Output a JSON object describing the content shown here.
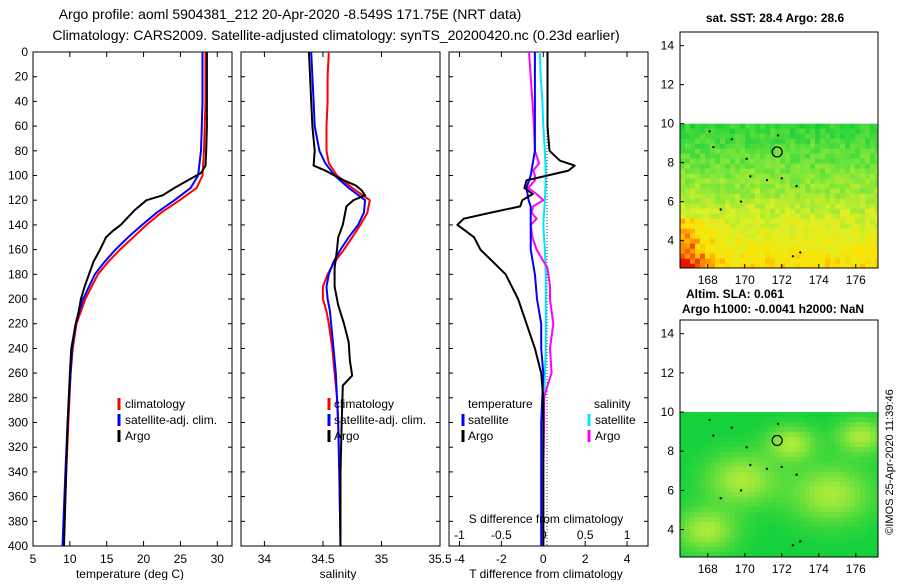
{
  "header": {
    "title_line1": "Argo profile: aoml 5904381_212 20-Apr-2020 -8.549S 171.75E (NRT data)",
    "title_line2": "Climatology: CARS2009. Satellite-adjusted climatology: synTS_20200420.nc (0.23d earlier)"
  },
  "colors": {
    "climatology": "#ff0000",
    "satellite": "#0000ff",
    "argo": "#000000",
    "satellite_salinity": "#00e5ff",
    "argo_salinity": "#ff00ff"
  },
  "depth_ticks": [
    "0",
    "20",
    "40",
    "60",
    "80",
    "100",
    "120",
    "140",
    "160",
    "180",
    "200",
    "220",
    "240",
    "260",
    "280",
    "300",
    "320",
    "340",
    "360",
    "380",
    "400"
  ],
  "chart_data": [
    {
      "type": "line",
      "panel": "temperature",
      "xlabel": "temperature (deg C)",
      "ylabel": "depth",
      "xlim": [
        5,
        32
      ],
      "ylim": [
        400,
        0
      ],
      "x_ticks": [
        "5",
        "10",
        "15",
        "20",
        "25",
        "30"
      ],
      "legend": [
        "climatology",
        "satellite-adj. clim.",
        "Argo"
      ],
      "series": [
        {
          "name": "climatology",
          "color": "#ff0000",
          "depth": [
            0,
            20,
            40,
            60,
            80,
            100,
            110,
            120,
            130,
            140,
            150,
            160,
            170,
            180,
            200,
            220,
            240,
            260,
            300,
            340,
            400
          ],
          "values": [
            28.4,
            28.4,
            28.4,
            28.3,
            28.2,
            28.0,
            27.2,
            24.9,
            22.4,
            20.4,
            18.6,
            16.8,
            15.2,
            13.8,
            12.1,
            10.9,
            10.4,
            10.1,
            9.8,
            9.5,
            9.1
          ]
        },
        {
          "name": "satellite-adj. clim.",
          "color": "#0000ff",
          "depth": [
            0,
            20,
            40,
            60,
            80,
            100,
            110,
            120,
            130,
            140,
            150,
            160,
            170,
            180,
            200,
            220,
            240,
            260,
            300,
            340,
            400
          ],
          "values": [
            28.0,
            28.0,
            28.0,
            27.9,
            27.8,
            27.4,
            26.4,
            24.2,
            21.8,
            19.8,
            17.9,
            16.2,
            14.7,
            13.4,
            11.8,
            10.8,
            10.3,
            10.1,
            9.7,
            9.4,
            9.0
          ]
        },
        {
          "name": "Argo",
          "color": "#000000",
          "depth": [
            0,
            20,
            40,
            60,
            80,
            92,
            98,
            104,
            110,
            116,
            120,
            128,
            135,
            140,
            145,
            150,
            160,
            170,
            180,
            190,
            200,
            210,
            220,
            230,
            240,
            260,
            300,
            340,
            400
          ],
          "values": [
            28.6,
            28.6,
            28.6,
            28.6,
            28.5,
            28.4,
            27.8,
            26.0,
            24.2,
            22.6,
            20.4,
            18.8,
            17.7,
            16.9,
            15.8,
            14.9,
            14.1,
            13.2,
            12.6,
            12.0,
            11.5,
            11.2,
            10.8,
            10.5,
            10.2,
            10.0,
            9.7,
            9.5,
            9.2
          ]
        }
      ]
    },
    {
      "type": "line",
      "panel": "salinity",
      "xlabel": "salinity",
      "ylabel": "depth",
      "xlim": [
        33.8,
        35.5
      ],
      "ylim": [
        400,
        0
      ],
      "x_ticks": [
        "34",
        "34.5",
        "35",
        "35.5"
      ],
      "legend": [
        "climatology",
        "satellite-adj. clim.",
        "Argo"
      ],
      "series": [
        {
          "name": "climatology",
          "color": "#ff0000",
          "depth": [
            0,
            20,
            40,
            60,
            80,
            90,
            100,
            110,
            120,
            130,
            140,
            150,
            160,
            170,
            180,
            190,
            200,
            210,
            220,
            240,
            260,
            280,
            300,
            340,
            400
          ],
          "values": [
            34.55,
            34.54,
            34.54,
            34.53,
            34.53,
            34.55,
            34.62,
            34.75,
            34.9,
            34.88,
            34.82,
            34.75,
            34.68,
            34.6,
            34.54,
            34.5,
            34.5,
            34.53,
            34.55,
            34.58,
            34.6,
            34.62,
            34.63,
            34.64,
            34.65
          ]
        },
        {
          "name": "satellite-adj. clim.",
          "color": "#0000ff",
          "depth": [
            0,
            20,
            40,
            60,
            80,
            90,
            100,
            110,
            120,
            130,
            140,
            150,
            160,
            170,
            180,
            190,
            200,
            210,
            220,
            240,
            260,
            280,
            300,
            340,
            400
          ],
          "values": [
            34.4,
            34.41,
            34.42,
            34.43,
            34.47,
            34.52,
            34.6,
            34.72,
            34.86,
            34.85,
            34.8,
            34.72,
            34.65,
            34.59,
            34.55,
            34.53,
            34.54,
            34.56,
            34.57,
            34.59,
            34.61,
            34.62,
            34.63,
            34.64,
            34.65
          ]
        },
        {
          "name": "Argo",
          "color": "#000000",
          "depth": [
            0,
            20,
            40,
            60,
            80,
            92,
            96,
            100,
            104,
            108,
            112,
            116,
            120,
            125,
            130,
            140,
            150,
            160,
            175,
            190,
            205,
            220,
            235,
            250,
            262,
            270,
            300,
            340,
            400
          ],
          "values": [
            34.38,
            34.39,
            34.4,
            34.41,
            34.43,
            34.42,
            34.52,
            34.6,
            34.68,
            34.78,
            34.83,
            34.86,
            34.76,
            34.7,
            34.69,
            34.67,
            34.63,
            34.62,
            34.6,
            34.6,
            34.63,
            34.68,
            34.72,
            34.73,
            34.75,
            34.67,
            34.66,
            34.65,
            34.65
          ]
        }
      ]
    },
    {
      "type": "line",
      "panel": "difference",
      "xlabel": "T difference from climatology",
      "top_xlabel": "S difference from climatology",
      "ylabel": "depth",
      "xlim": [
        -4.5,
        5.0
      ],
      "top_xlim": [
        -1.125,
        1.25
      ],
      "ylim": [
        400,
        0
      ],
      "x_ticks": [
        "-4",
        "-2",
        "0",
        "2",
        "4"
      ],
      "top_x_ticks": [
        "-1",
        "-0.5",
        "0",
        "0.5",
        "1"
      ],
      "legend_temperature": [
        "satellite",
        "Argo"
      ],
      "legend_salinity": [
        "satellite",
        "Argo"
      ],
      "series": [
        {
          "name": "temperature satellite",
          "color": "#0000ff",
          "axis": "T",
          "depth": [
            0,
            20,
            40,
            60,
            80,
            100,
            110,
            120,
            125,
            140,
            160,
            180,
            200,
            220,
            240,
            260,
            300,
            340,
            400
          ],
          "values": [
            -0.4,
            -0.4,
            -0.4,
            -0.4,
            -0.4,
            -0.6,
            -0.8,
            -0.7,
            -0.6,
            -0.6,
            -0.6,
            -0.4,
            -0.3,
            -0.1,
            -0.1,
            0.0,
            -0.1,
            -0.1,
            -0.1
          ]
        },
        {
          "name": "temperature Argo",
          "color": "#000000",
          "axis": "T",
          "depth": [
            0,
            20,
            40,
            60,
            80,
            88,
            92,
            96,
            100,
            104,
            110,
            115,
            120,
            125,
            130,
            135,
            140,
            145,
            150,
            160,
            170,
            180,
            200,
            220,
            240,
            260,
            280,
            300,
            340,
            400
          ],
          "values": [
            0.2,
            0.2,
            0.2,
            0.2,
            0.3,
            0.8,
            1.5,
            1.2,
            0.2,
            -0.8,
            -0.9,
            -0.5,
            -1.0,
            -1.1,
            -2.5,
            -3.8,
            -4.1,
            -3.7,
            -3.3,
            -3.0,
            -2.4,
            -1.8,
            -1.2,
            -0.8,
            -0.4,
            -0.1,
            0.0,
            0.0,
            0.0,
            0.0
          ]
        },
        {
          "name": "salinity satellite",
          "color": "#00e5ff",
          "axis": "S",
          "depth": [
            0,
            20,
            40,
            60,
            80,
            100,
            120,
            140,
            160,
            180,
            200,
            220,
            240,
            260,
            280,
            300,
            320,
            360,
            400
          ],
          "values": [
            -0.04,
            -0.03,
            -0.01,
            0.0,
            0.02,
            0.03,
            0.02,
            0.0,
            0.02,
            0.03,
            0.03,
            0.03,
            0.03,
            0.02,
            0.01,
            0.01,
            0.0,
            0.0,
            0.0
          ]
        },
        {
          "name": "salinity Argo",
          "color": "#ff00ff",
          "axis": "S",
          "depth": [
            0,
            20,
            40,
            60,
            80,
            90,
            96,
            100,
            104,
            110,
            115,
            120,
            125,
            130,
            135,
            140,
            150,
            160,
            175,
            190,
            200,
            210,
            220,
            240,
            260,
            270,
            280,
            300,
            340,
            400
          ],
          "values": [
            -0.17,
            -0.15,
            -0.13,
            -0.11,
            -0.1,
            -0.05,
            -0.12,
            -0.1,
            -0.1,
            -0.18,
            -0.08,
            0.0,
            -0.12,
            -0.14,
            -0.08,
            -0.15,
            -0.13,
            -0.08,
            0.05,
            0.08,
            0.08,
            0.1,
            0.12,
            0.08,
            0.1,
            0.05,
            0.01,
            0.01,
            0.0,
            0.0
          ]
        }
      ]
    },
    {
      "type": "heatmap",
      "panel": "sst_map",
      "title": "sat. SST: 28.4 Argo: 28.6",
      "x_ticks": [
        "168",
        "170",
        "172",
        "174",
        "176"
      ],
      "y_ticks": [
        "4",
        "6",
        "8",
        "10",
        "12",
        "14"
      ],
      "xlim": [
        166.5,
        177.2
      ],
      "ylim": [
        2.6,
        14.7
      ],
      "data_ylim": [
        2.6,
        10
      ],
      "marker": {
        "lon": 171.75,
        "lat": 8.55
      }
    },
    {
      "type": "heatmap",
      "panel": "sla_map",
      "title_line1": "Altim. SLA: 0.061",
      "title_line2": "Argo h1000: -0.0041 h2000: NaN",
      "x_ticks": [
        "168",
        "170",
        "172",
        "174",
        "176"
      ],
      "y_ticks": [
        "4",
        "6",
        "8",
        "10",
        "12",
        "14"
      ],
      "xlim": [
        166.5,
        177.2
      ],
      "ylim": [
        2.6,
        14.7
      ],
      "data_ylim": [
        2.6,
        10
      ],
      "marker": {
        "lon": 171.75,
        "lat": 8.55
      }
    }
  ],
  "footer": {
    "credit": "©IMOS 25-Apr-2020 11:39:46"
  }
}
